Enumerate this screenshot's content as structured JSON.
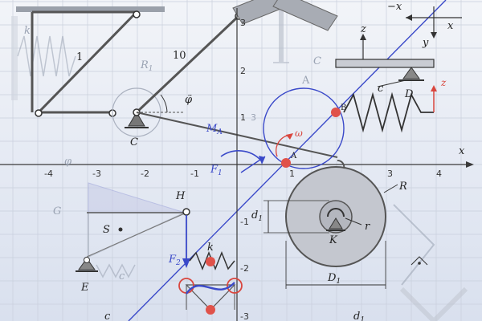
{
  "colors": {
    "grid": "#c9cfdc",
    "axis": "#3a3a3a",
    "member": "#555555",
    "accent_blue": "#3a49c9",
    "accent_red": "#d9463e",
    "disk": "#c4c7cf",
    "faint": "#aab1bf"
  },
  "axes": {
    "x_label": "x",
    "y_label": "y",
    "x_ticks": [
      "-4",
      "-3",
      "-2",
      "-1",
      "1",
      "2",
      "3",
      "4"
    ],
    "y_ticks": [
      "3",
      "2",
      "1",
      "-1",
      "-2",
      "-3"
    ]
  },
  "labels": {
    "link_1": "1",
    "link_10": "10",
    "spring_k_left": "k",
    "r1": "R",
    "r1_sub": "1",
    "phi_ddot": "φ̈",
    "point_c": "C",
    "moment": "M",
    "moment_sub": "A",
    "omega": "ω",
    "point_a": "A",
    "point_b": "B",
    "force_f1": "F",
    "force_f1_sub": "1",
    "force_f2": "F",
    "force_f2_sub": "2",
    "spring_c": "c",
    "point_d": "D",
    "z_top": "z",
    "z_red": "z",
    "neg_x": "−x",
    "x_small": "x",
    "y_small": "y",
    "radius_r_big": "R",
    "radius_r_small": "r",
    "point_k": "K",
    "dim_d1": "d",
    "dim_d1_sub": "1",
    "dim_D1": "D",
    "dim_D1_sub": "1",
    "point_h": "H",
    "point_s": "S",
    "point_e": "E",
    "spring_k_mid": "k",
    "g_label": "G",
    "phi_label": "φ",
    "c_bottom": "c",
    "c_faint": "c",
    "d_bottom": "d",
    "d_bottom_sub": "1",
    "a_faint": "A",
    "c_faint2": "C",
    "num_3_faint": "3"
  }
}
